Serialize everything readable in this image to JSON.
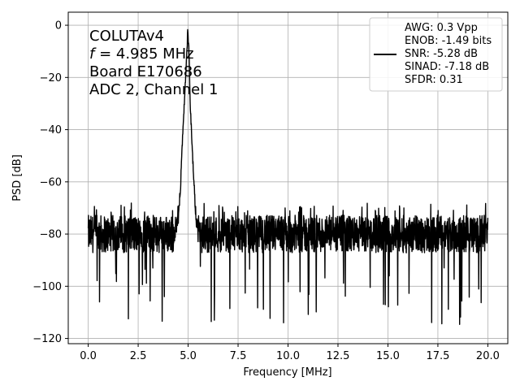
{
  "chart_data": {
    "type": "line",
    "xlabel": "Frequency [MHz]",
    "ylabel": "PSD [dB]",
    "xlim": [
      -1.0,
      21.0
    ],
    "ylim": [
      -122,
      5
    ],
    "xticks": [
      0.0,
      2.5,
      5.0,
      7.5,
      10.0,
      12.5,
      15.0,
      17.5,
      20.0
    ],
    "xtick_labels": [
      "0.0",
      "2.5",
      "5.0",
      "7.5",
      "10.0",
      "12.5",
      "15.0",
      "17.5",
      "20.0"
    ],
    "yticks": [
      0,
      -20,
      -40,
      -60,
      -80,
      -100,
      -120
    ],
    "ytick_labels": [
      "0",
      "−20",
      "−40",
      "−60",
      "−80",
      "−100",
      "−120"
    ],
    "grid": true,
    "annotation": {
      "line1": "COLUTAv4",
      "line2_italic": "f",
      "line2_rest": " = 4.985 MHz",
      "line3": "Board E170686",
      "line4": "ADC 2, Channel 1"
    },
    "legend": {
      "placement": "top-right",
      "entries": [
        "AWG: 0.3 Vpp",
        "ENOB: -1.49 bits",
        "SNR: -5.28 dB",
        "SINAD: -7.18 dB",
        "SFDR: 0.31"
      ]
    },
    "series": [
      {
        "color": "#000000",
        "x": [
          0.0,
          0.1,
          0.3,
          0.6,
          1.0,
          1.5,
          2.0,
          2.5,
          3.0,
          3.5,
          4.0,
          4.3,
          4.5,
          4.6,
          4.7,
          4.8,
          4.9,
          4.95,
          4.985,
          5.05,
          5.1,
          5.2,
          5.3,
          5.4,
          5.5,
          6.0,
          7.0,
          8.0,
          9.0,
          10.0,
          11.0,
          12.0,
          13.0,
          14.0,
          15.0,
          16.0,
          17.0,
          18.0,
          19.0,
          20.0
        ],
        "y": [
          -76,
          -78,
          -82,
          -80,
          -79,
          -81,
          -80,
          -82,
          -79,
          -80,
          -81,
          -78,
          -72,
          -60,
          -45,
          -30,
          -15,
          -6,
          0,
          -10,
          -28,
          -45,
          -60,
          -72,
          -78,
          -82,
          -81,
          -80,
          -82,
          -81,
          -80,
          -82,
          -81,
          -80,
          -82,
          -81,
          -80,
          -82,
          -81,
          -80
        ],
        "noise_floor": {
          "center": -80,
          "spread": 8,
          "dips_to": -115,
          "freq_range": [
            0.0,
            20.0
          ]
        }
      }
    ]
  }
}
